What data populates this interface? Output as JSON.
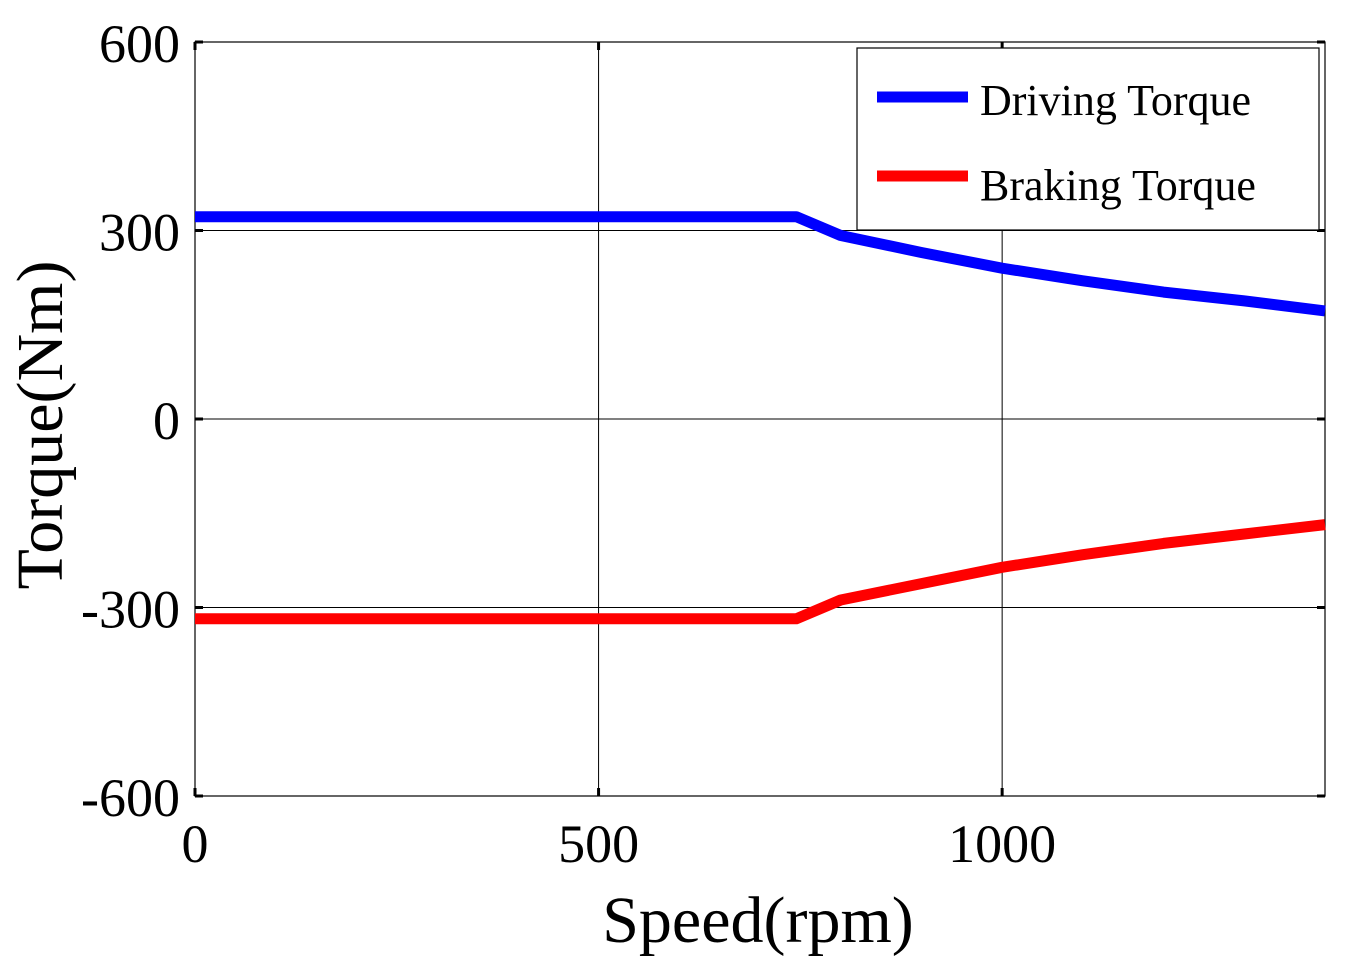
{
  "chart_data": {
    "type": "line",
    "title": "",
    "xlabel": "Speed(rpm)",
    "ylabel": "Torque(Nm)",
    "xlim": [
      0,
      1400
    ],
    "ylim": [
      -600,
      600
    ],
    "xticks": [
      0,
      500,
      1000
    ],
    "yticks": [
      600,
      300,
      0,
      -300,
      -600
    ],
    "xtick_labels": [
      "0",
      "500",
      "1000"
    ],
    "ytick_labels": [
      "600",
      "300",
      "0",
      "-300",
      "-600"
    ],
    "grid": true,
    "legend_position": "top-right",
    "series": [
      {
        "name": "Driving Torque",
        "color": "#0000ff",
        "x": [
          0,
          200,
          400,
          600,
          745,
          800,
          900,
          1000,
          1100,
          1200,
          1300,
          1400
        ],
        "y": [
          322,
          322,
          322,
          322,
          322,
          292,
          265,
          240,
          220,
          202,
          188,
          172
        ]
      },
      {
        "name": "Braking Torque",
        "color": "#ff0000",
        "x": [
          0,
          200,
          400,
          600,
          745,
          800,
          900,
          1000,
          1100,
          1200,
          1300,
          1400
        ],
        "y": [
          -318,
          -318,
          -318,
          -318,
          -318,
          -288,
          -262,
          -236,
          -216,
          -198,
          -183,
          -168
        ]
      }
    ]
  }
}
